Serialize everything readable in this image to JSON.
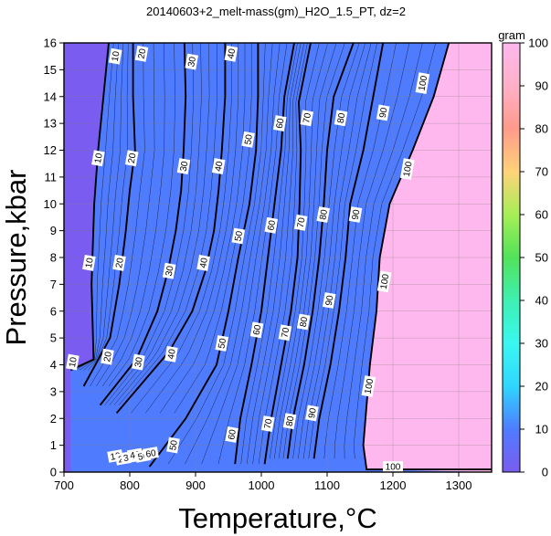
{
  "chart_data": {
    "type": "heatmap",
    "title": "20140603+2_melt-mass(gm)_H2O_1.5_PT, dz=2",
    "xlabel": "Temperature,°C",
    "ylabel": "Pressure,kbar",
    "colorbar_label": "gram",
    "xlim": [
      700,
      1350
    ],
    "ylim": [
      0,
      16
    ],
    "zlim": [
      0,
      100
    ],
    "x_ticks": [
      700,
      800,
      900,
      1000,
      1100,
      1200,
      1300
    ],
    "y_ticks": [
      0,
      1,
      2,
      3,
      4,
      5,
      6,
      7,
      8,
      9,
      10,
      11,
      12,
      13,
      14,
      15,
      16
    ],
    "colorbar_ticks": [
      0,
      10,
      20,
      30,
      40,
      50,
      60,
      70,
      80,
      90,
      100
    ],
    "grid": true,
    "contour_interval": 2,
    "colormap": [
      {
        "value": 0,
        "color": "#7a5cf0"
      },
      {
        "value": 10,
        "color": "#4f7cff"
      },
      {
        "value": 20,
        "color": "#2fd6ff"
      },
      {
        "value": 30,
        "color": "#3af7f0"
      },
      {
        "value": 40,
        "color": "#3ef0b2"
      },
      {
        "value": 50,
        "color": "#52e25a"
      },
      {
        "value": 60,
        "color": "#a6ee55"
      },
      {
        "value": 70,
        "color": "#ffd27a"
      },
      {
        "value": 80,
        "color": "#ff9a8a"
      },
      {
        "value": 90,
        "color": "#ffb0c8"
      },
      {
        "value": 100,
        "color": "#ffb8ee"
      }
    ],
    "contours": [
      {
        "level": 10,
        "points": [
          [
            710,
            3.8
          ],
          [
            745,
            4.2
          ],
          [
            742,
            7
          ],
          [
            746,
            10
          ],
          [
            752,
            12
          ],
          [
            760,
            14
          ],
          [
            768,
            16
          ]
        ],
        "labels": [
          [
            713,
            4.1
          ],
          [
            738,
            7.8
          ],
          [
            752,
            11.7
          ],
          [
            778,
            15.5
          ]
        ]
      },
      {
        "level": 20,
        "points": [
          [
            730,
            3.2
          ],
          [
            770,
            5
          ],
          [
            784,
            7
          ],
          [
            794,
            9
          ],
          [
            800,
            10.5
          ],
          [
            808,
            12
          ],
          [
            805,
            14
          ],
          [
            805,
            16
          ]
        ],
        "labels": [
          [
            766,
            4.3
          ],
          [
            784,
            7.8
          ],
          [
            803,
            11.7
          ],
          [
            818,
            15.6
          ]
        ]
      },
      {
        "level": 30,
        "points": [
          [
            755,
            2.5
          ],
          [
            810,
            4.2
          ],
          [
            842,
            6
          ],
          [
            858,
            7.5
          ],
          [
            870,
            9
          ],
          [
            878,
            10.5
          ],
          [
            882,
            12
          ],
          [
            885,
            14
          ],
          [
            883,
            16
          ]
        ],
        "labels": [
          [
            813,
            4.1
          ],
          [
            860,
            7.5
          ],
          [
            882,
            11.4
          ],
          [
            894,
            15.3
          ]
        ]
      },
      {
        "level": 40,
        "points": [
          [
            780,
            2.2
          ],
          [
            860,
            4.5
          ],
          [
            895,
            6
          ],
          [
            915,
            7.5
          ],
          [
            928,
            9
          ],
          [
            935,
            10.5
          ],
          [
            940,
            12
          ],
          [
            945,
            14
          ],
          [
            945,
            16
          ]
        ],
        "labels": [
          [
            863,
            4.4
          ],
          [
            912,
            7.8
          ],
          [
            935,
            11.4
          ],
          [
            954,
            15.6
          ]
        ]
      },
      {
        "level": 50,
        "points": [
          [
            830,
            0.2
          ],
          [
            885,
            2
          ],
          [
            932,
            4
          ],
          [
            950,
            6
          ],
          [
            965,
            8
          ],
          [
            982,
            10
          ],
          [
            992,
            12
          ],
          [
            995,
            14
          ],
          [
            995,
            16
          ]
        ],
        "labels": [
          [
            866,
            1
          ],
          [
            940,
            4.8
          ],
          [
            965,
            8.8
          ],
          [
            980,
            12.4
          ]
        ]
      },
      {
        "level": 60,
        "points": [
          [
            960,
            0.3
          ],
          [
            968,
            2
          ],
          [
            985,
            4
          ],
          [
            1000,
            6
          ],
          [
            1010,
            8
          ],
          [
            1020,
            10
          ],
          [
            1030,
            12
          ],
          [
            1035,
            14
          ],
          [
            1050,
            16
          ]
        ],
        "labels": [
          [
            955,
            1.4
          ],
          [
            993,
            5.3
          ],
          [
            1015,
            9.2
          ],
          [
            1028,
            13
          ]
        ]
      },
      {
        "level": 70,
        "points": [
          [
            1005,
            0.3
          ],
          [
            1015,
            2
          ],
          [
            1030,
            4
          ],
          [
            1045,
            6
          ],
          [
            1055,
            8
          ],
          [
            1058,
            10
          ],
          [
            1060,
            12
          ],
          [
            1057,
            13.8
          ],
          [
            1075,
            16
          ]
        ],
        "labels": [
          [
            1010,
            1.8
          ],
          [
            1036,
            5.2
          ],
          [
            1060,
            9.3
          ],
          [
            1069,
            13.2
          ]
        ]
      },
      {
        "level": 80,
        "points": [
          [
            1040,
            0.5
          ],
          [
            1048,
            2
          ],
          [
            1065,
            4
          ],
          [
            1078,
            6
          ],
          [
            1088,
            8
          ],
          [
            1095,
            10
          ],
          [
            1100,
            12
          ],
          [
            1110,
            14
          ],
          [
            1140,
            16
          ]
        ],
        "labels": [
          [
            1043,
            1.9
          ],
          [
            1064,
            5.6
          ],
          [
            1094,
            9.6
          ],
          [
            1121,
            13.2
          ]
        ]
      },
      {
        "level": 90,
        "points": [
          [
            1080,
            0.5
          ],
          [
            1088,
            2
          ],
          [
            1105,
            4
          ],
          [
            1118,
            6
          ],
          [
            1128,
            8
          ],
          [
            1135,
            10
          ],
          [
            1155,
            12
          ],
          [
            1170,
            14
          ],
          [
            1185,
            16
          ]
        ],
        "labels": [
          [
            1077,
            2.2
          ],
          [
            1103,
            6.4
          ],
          [
            1143,
            9.6
          ],
          [
            1185,
            13.4
          ]
        ]
      },
      {
        "level": 100,
        "points": [
          [
            1350,
            0.1
          ],
          [
            1160,
            0.1
          ],
          [
            1155,
            1
          ],
          [
            1165,
            4
          ],
          [
            1175,
            6
          ],
          [
            1180,
            8
          ],
          [
            1195,
            10
          ],
          [
            1230,
            12
          ],
          [
            1262,
            14
          ],
          [
            1285,
            16
          ]
        ],
        "labels": [
          [
            1200,
            0.2
          ],
          [
            1163,
            3.2
          ],
          [
            1187,
            7.1
          ],
          [
            1222,
            11.3
          ],
          [
            1245,
            14.5
          ]
        ]
      }
    ],
    "mixed_labels": [
      {
        "text": "10",
        "x": 778,
        "y": 0.6
      },
      {
        "text": "20",
        "x": 790,
        "y": 0.5
      },
      {
        "text": "30",
        "x": 798,
        "y": 0.55
      },
      {
        "text": "40",
        "x": 808,
        "y": 0.65
      },
      {
        "text": "50",
        "x": 820,
        "y": 0.6
      },
      {
        "text": "60",
        "x": 832,
        "y": 0.7
      }
    ]
  }
}
